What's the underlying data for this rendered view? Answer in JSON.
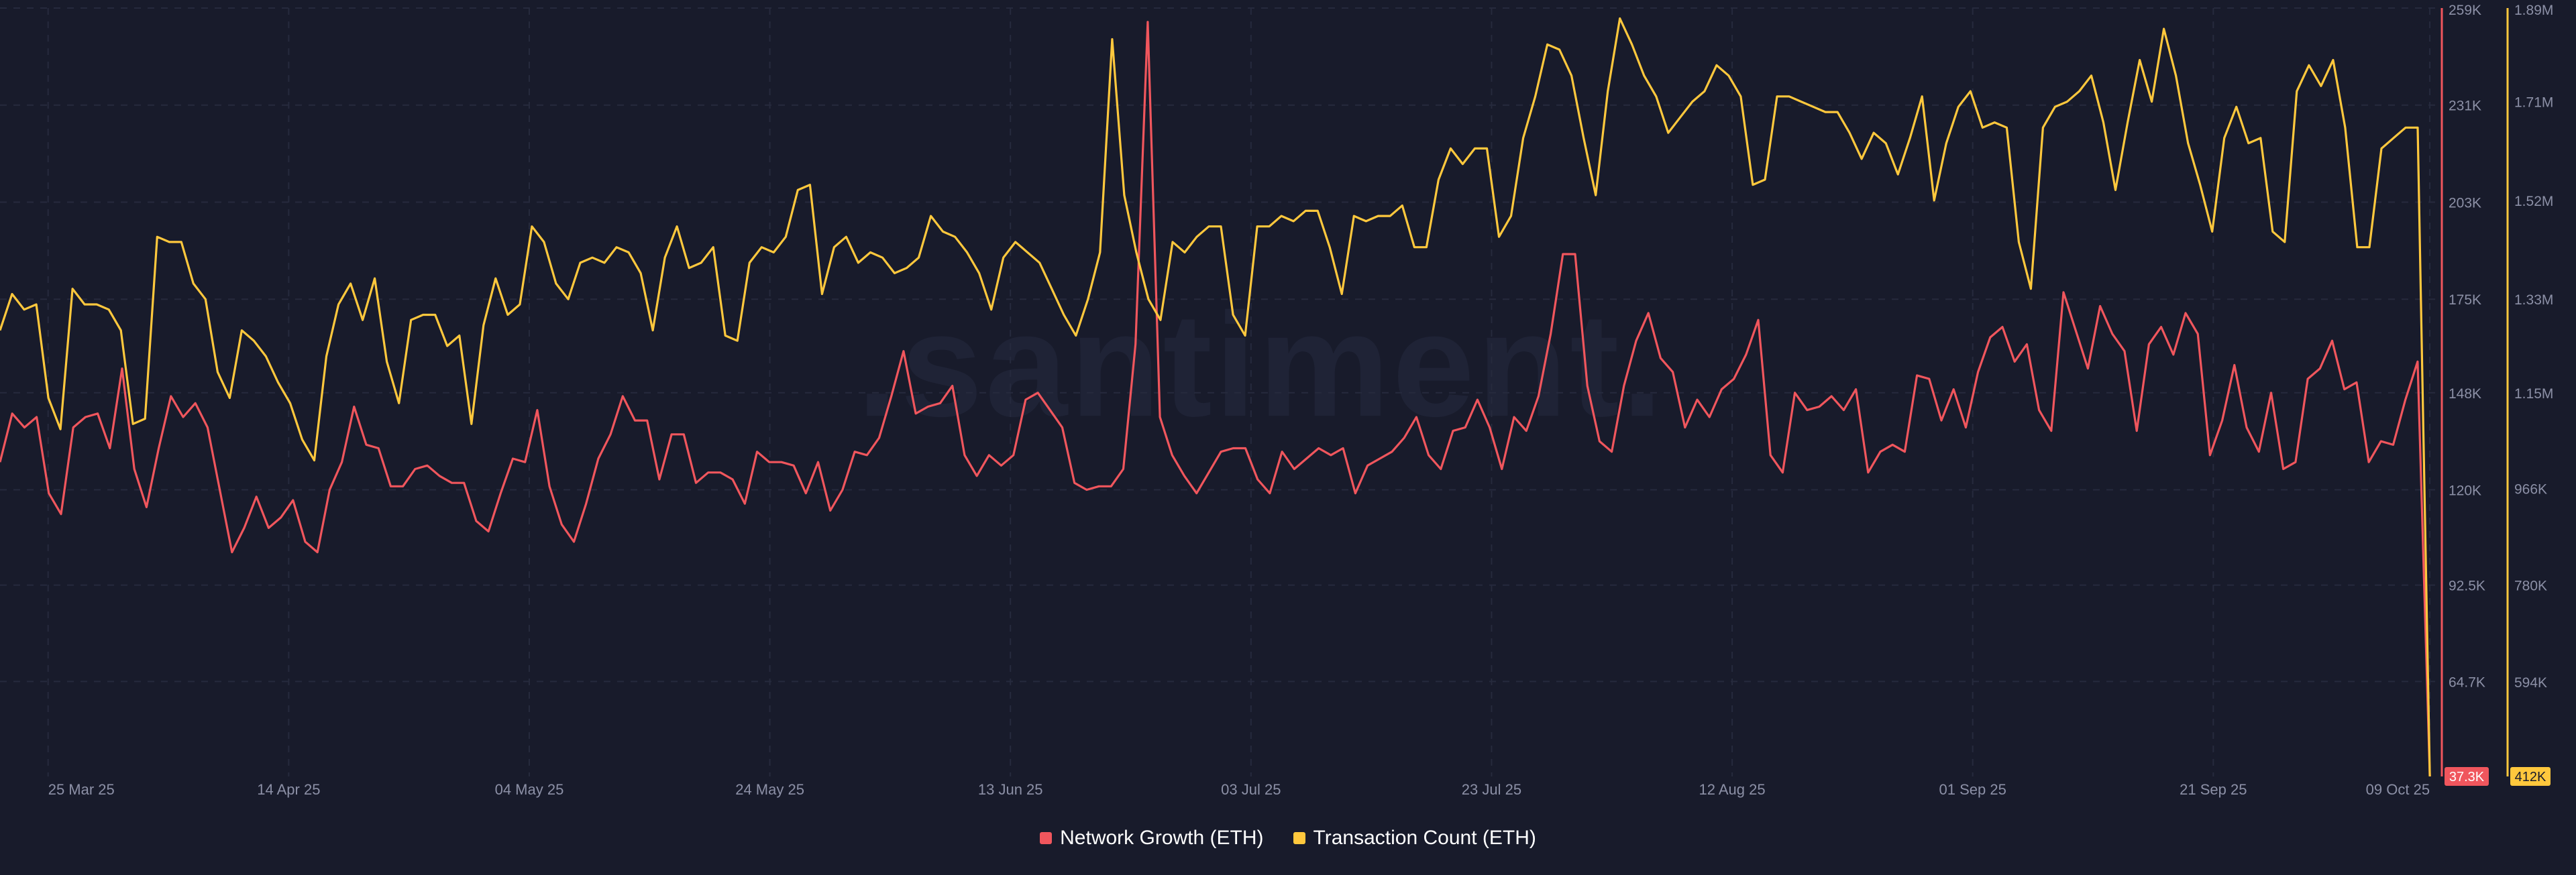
{
  "watermark": ".santiment.",
  "colors": {
    "background": "#181b2b",
    "grid": "#262a3d",
    "axis_text": "#8c90a6",
    "network_growth": "#f0565d",
    "transaction_count": "#ffc83d"
  },
  "legend": [
    {
      "label": "Network Growth (ETH)",
      "color": "#f0565d"
    },
    {
      "label": "Transaction Count (ETH)",
      "color": "#ffc83d"
    }
  ],
  "chart_data": {
    "type": "line",
    "grid": true,
    "legend_position": "bottom-center",
    "x_start": "2025-03-21",
    "x_end": "2025-10-09",
    "xlim": [
      "2025-03-21",
      "2025-10-10"
    ],
    "x_tick_labels": [
      "25 Mar 25",
      "14 Apr 25",
      "04 May 25",
      "24 May 25",
      "13 Jun 25",
      "03 Jul 25",
      "23 Jul 25",
      "12 Aug 25",
      "01 Sep 25",
      "21 Sep 25",
      "09 Oct 25"
    ],
    "x_tick_dates": [
      "2025-03-25",
      "2025-04-14",
      "2025-05-04",
      "2025-05-24",
      "2025-06-13",
      "2025-07-03",
      "2025-07-23",
      "2025-08-12",
      "2025-09-01",
      "2025-09-21",
      "2025-10-09"
    ],
    "axes": {
      "network_growth": {
        "ylim": [
          37300,
          259000
        ],
        "ticks": [
          259000,
          231000,
          203000,
          175000,
          148000,
          120000,
          92500,
          64700
        ],
        "tick_labels": [
          "259K",
          "231K",
          "203K",
          "175K",
          "148K",
          "120K",
          "92.5K",
          "64.7K"
        ],
        "last_value_label": "37.3K"
      },
      "transaction_count": {
        "ylim": [
          412000,
          1890000
        ],
        "ticks": [
          1890000,
          1710000,
          1520000,
          1330000,
          1150000,
          966000,
          780000,
          594000
        ],
        "tick_labels": [
          "1.89M",
          "1.71M",
          "1.52M",
          "1.33M",
          "1.15M",
          "966K",
          "780K",
          "594K"
        ],
        "last_value_label": "412K"
      }
    },
    "series": [
      {
        "name": "Network Growth (ETH)",
        "axis": "network_growth",
        "color": "#f0565d",
        "values": [
          128000,
          142000,
          138000,
          141000,
          119000,
          113000,
          138000,
          141000,
          142000,
          132000,
          155000,
          126000,
          115000,
          132000,
          147000,
          141000,
          145000,
          138000,
          120000,
          102000,
          109000,
          118000,
          109000,
          112000,
          117000,
          105000,
          102000,
          120000,
          128000,
          144000,
          133000,
          132000,
          121000,
          121000,
          126000,
          127000,
          124000,
          122000,
          122000,
          111000,
          108000,
          119000,
          129000,
          128000,
          143000,
          121000,
          110000,
          105000,
          116000,
          129000,
          136000,
          147000,
          140000,
          140000,
          123000,
          136000,
          136000,
          122000,
          125000,
          125000,
          123000,
          116000,
          131000,
          128000,
          128000,
          127000,
          119000,
          128000,
          114000,
          120000,
          131000,
          130000,
          135000,
          147000,
          160000,
          142000,
          144000,
          145000,
          150000,
          130000,
          124000,
          130000,
          127000,
          130000,
          146000,
          148000,
          143000,
          138000,
          122000,
          120000,
          121000,
          121000,
          126000,
          162000,
          255000,
          141000,
          130000,
          124000,
          119000,
          125000,
          131000,
          132000,
          132000,
          123000,
          119000,
          131000,
          126000,
          129000,
          132000,
          130000,
          132000,
          119000,
          127000,
          129000,
          131000,
          135000,
          141000,
          130000,
          126000,
          137000,
          138000,
          146000,
          138000,
          126000,
          141000,
          137000,
          147000,
          165000,
          188000,
          188000,
          150000,
          134000,
          131000,
          150000,
          163000,
          171000,
          158000,
          154000,
          138000,
          146000,
          141000,
          149000,
          152000,
          159000,
          169000,
          130000,
          125000,
          148000,
          143000,
          144000,
          147000,
          143000,
          149000,
          125000,
          131000,
          133000,
          131000,
          153000,
          152000,
          140000,
          149000,
          138000,
          154000,
          164000,
          167000,
          157000,
          162000,
          143000,
          137000,
          177000,
          166000,
          155000,
          173000,
          165000,
          160000,
          137000,
          162000,
          167000,
          159000,
          171000,
          165000,
          130000,
          140000,
          156000,
          138000,
          131000,
          148000,
          126000,
          128000,
          152000,
          155000,
          163000,
          149000,
          151000,
          128000,
          134000,
          133000,
          146000,
          157000,
          37300
        ]
      },
      {
        "name": "Transaction Count (ETH)",
        "axis": "transaction_count",
        "color": "#ffc83d",
        "values": [
          1270000,
          1340000,
          1310000,
          1320000,
          1140000,
          1080000,
          1350000,
          1320000,
          1320000,
          1310000,
          1270000,
          1090000,
          1100000,
          1450000,
          1440000,
          1440000,
          1360000,
          1330000,
          1190000,
          1140000,
          1270000,
          1250000,
          1220000,
          1170000,
          1130000,
          1060000,
          1020000,
          1220000,
          1320000,
          1360000,
          1290000,
          1370000,
          1210000,
          1130000,
          1290000,
          1300000,
          1300000,
          1240000,
          1260000,
          1090000,
          1280000,
          1370000,
          1300000,
          1320000,
          1470000,
          1440000,
          1360000,
          1330000,
          1400000,
          1410000,
          1400000,
          1430000,
          1420000,
          1380000,
          1270000,
          1410000,
          1470000,
          1390000,
          1400000,
          1430000,
          1260000,
          1250000,
          1400000,
          1430000,
          1420000,
          1450000,
          1540000,
          1550000,
          1340000,
          1430000,
          1450000,
          1400000,
          1420000,
          1410000,
          1380000,
          1390000,
          1410000,
          1490000,
          1460000,
          1450000,
          1420000,
          1380000,
          1310000,
          1410000,
          1440000,
          1420000,
          1400000,
          1350000,
          1300000,
          1260000,
          1330000,
          1420000,
          1830000,
          1530000,
          1420000,
          1330000,
          1290000,
          1440000,
          1420000,
          1450000,
          1470000,
          1470000,
          1300000,
          1260000,
          1470000,
          1470000,
          1490000,
          1480000,
          1500000,
          1500000,
          1430000,
          1340000,
          1490000,
          1480000,
          1490000,
          1490000,
          1510000,
          1430000,
          1430000,
          1560000,
          1620000,
          1590000,
          1620000,
          1620000,
          1450000,
          1490000,
          1640000,
          1720000,
          1820000,
          1810000,
          1760000,
          1640000,
          1530000,
          1730000,
          1870000,
          1820000,
          1760000,
          1720000,
          1650000,
          1680000,
          1710000,
          1730000,
          1780000,
          1760000,
          1720000,
          1550000,
          1560000,
          1720000,
          1720000,
          1710000,
          1700000,
          1690000,
          1690000,
          1650000,
          1600000,
          1650000,
          1630000,
          1570000,
          1640000,
          1720000,
          1520000,
          1630000,
          1700000,
          1730000,
          1660000,
          1670000,
          1660000,
          1440000,
          1350000,
          1660000,
          1700000,
          1710000,
          1730000,
          1760000,
          1670000,
          1540000,
          1670000,
          1790000,
          1710000,
          1850000,
          1760000,
          1630000,
          1550000,
          1460000,
          1640000,
          1700000,
          1630000,
          1640000,
          1460000,
          1440000,
          1730000,
          1780000,
          1740000,
          1790000,
          1660000,
          1430000,
          1430000,
          1620000,
          1640000,
          1660000,
          1660000,
          412000
        ]
      }
    ]
  }
}
